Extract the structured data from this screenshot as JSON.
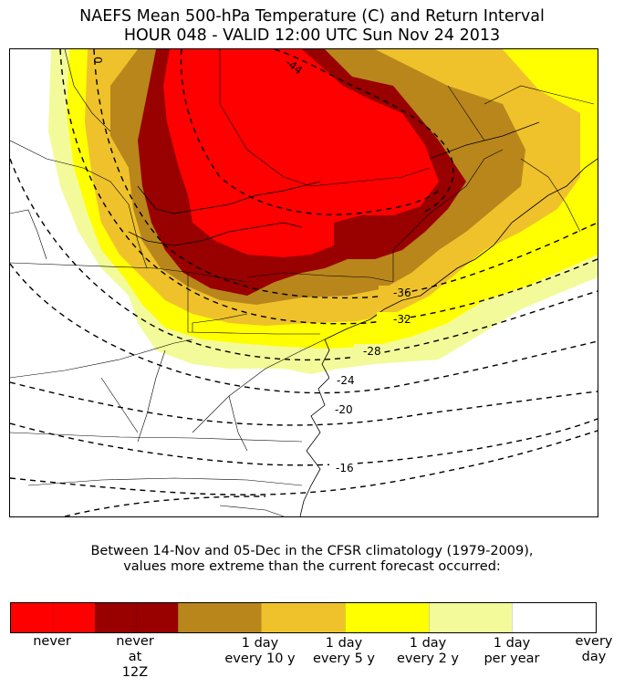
{
  "title": {
    "line1": "NAEFS Mean 500-hPa Temperature (C) and Return Interval",
    "line2": "HOUR 048 - VALID 12:00 UTC Sun Nov 24 2013"
  },
  "map": {
    "contour_labels": [
      "-44",
      "-36",
      "-32",
      "-28",
      "-24",
      "-20",
      "-16",
      "0"
    ],
    "colors": {
      "never": "#ff0000",
      "never_12z": "#990000",
      "every_10y": "#b8861b",
      "every_5y": "#efc22b",
      "every_2y": "#ffff00",
      "per_year": "#f3fa9a",
      "every_day": "#ffffff"
    }
  },
  "caption": {
    "line1": "Between 14-Nov and 05-Dec in the CFSR climatology (1979-2009),",
    "line2": "values more extreme than the current forecast occurred:"
  },
  "colorbar": {
    "segments": [
      {
        "color": "#ff0000",
        "label_line1": "never",
        "label_line2": "",
        "label_line3": ""
      },
      {
        "color": "#990000",
        "label_line1": "never",
        "label_line2": "at",
        "label_line3": "12Z"
      },
      {
        "color": "#b8861b",
        "label_line1": "1 day",
        "label_line2": "every 10 y",
        "label_line3": ""
      },
      {
        "color": "#efc22b",
        "label_line1": "1 day",
        "label_line2": "every 5 y",
        "label_line3": ""
      },
      {
        "color": "#ffff00",
        "label_line1": "1 day",
        "label_line2": "every 2 y",
        "label_line3": ""
      },
      {
        "color": "#f3fa9a",
        "label_line1": "1 day",
        "label_line2": "per year",
        "label_line3": ""
      },
      {
        "color": "#ffffff",
        "label_line1": "every",
        "label_line2": "day",
        "label_line3": ""
      }
    ]
  }
}
